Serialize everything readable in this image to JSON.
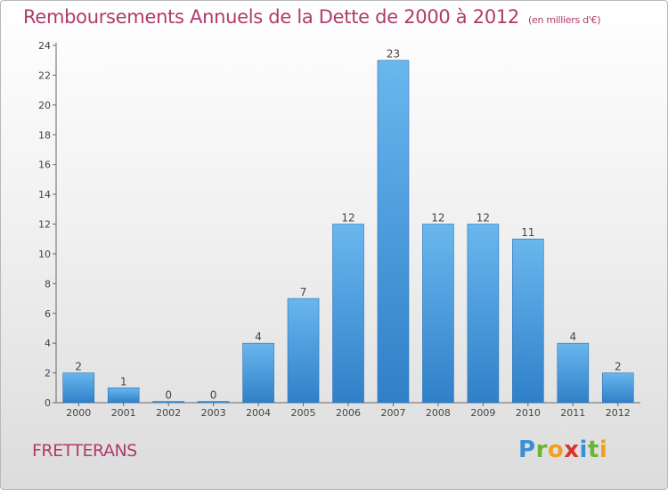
{
  "title": "Remboursements Annuels de la Dette de 2000 à 2012",
  "unit_label": "(en milliers d'€)",
  "commune": "FRETTERANS",
  "logo_text": "Proxiti",
  "colors": {
    "bar": "#4a9ee0",
    "bar_light": "#6ab6ee",
    "bar_dark": "#2f80c8",
    "title": "#b03a6c",
    "axis": "#555555"
  },
  "chart_data": {
    "type": "bar",
    "title": "Remboursements Annuels de la Dette de 2000 à 2012",
    "subtitle": "(en milliers d'€)",
    "categories": [
      "2000",
      "2001",
      "2002",
      "2003",
      "2004",
      "2005",
      "2006",
      "2007",
      "2008",
      "2009",
      "2010",
      "2011",
      "2012"
    ],
    "values": [
      2,
      1,
      0,
      0,
      4,
      7,
      12,
      23,
      12,
      12,
      11,
      4,
      2
    ],
    "data_labels": [
      "2",
      "1",
      "0",
      "0",
      "4",
      "7",
      "12",
      "23",
      "12",
      "12",
      "11",
      "4",
      "2"
    ],
    "ylim": [
      0,
      24
    ],
    "yticks": [
      0,
      2,
      4,
      6,
      8,
      10,
      12,
      14,
      16,
      18,
      20,
      22,
      24
    ],
    "xlabel": "",
    "ylabel": "",
    "grid": false,
    "legend": "none"
  }
}
